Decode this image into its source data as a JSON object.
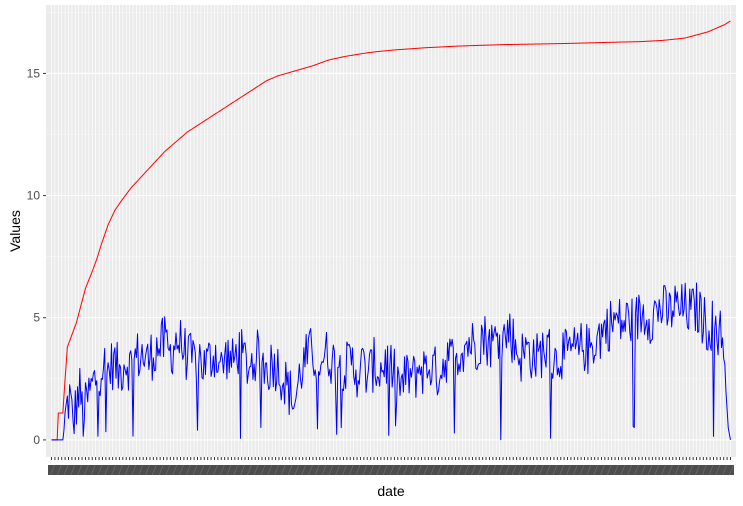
{
  "chart_data": {
    "type": "line",
    "xlabel": "date",
    "ylabel": "Values",
    "ylim": [
      -0.7,
      17.8
    ],
    "y_ticks": [
      0,
      5,
      10,
      15
    ],
    "n_points": 600,
    "grid": "on",
    "legend": "none",
    "colors": {
      "panel": "#ebebeb",
      "grid_major": "#ffffff",
      "grid_minor": "#f5f5f5",
      "tick_text": "#4d4d4d",
      "tick_mark": "#333333"
    },
    "series": [
      {
        "color": "#ff0000",
        "shape": "cumulative",
        "points": [
          [
            0,
            0
          ],
          [
            5,
            0
          ],
          [
            6,
            1.1
          ],
          [
            10,
            1.1
          ],
          [
            12,
            2.5
          ],
          [
            14,
            3.8
          ],
          [
            18,
            4.3
          ],
          [
            22,
            4.8
          ],
          [
            26,
            5.5
          ],
          [
            30,
            6.2
          ],
          [
            36,
            6.9
          ],
          [
            40,
            7.4
          ],
          [
            44,
            8.0
          ],
          [
            50,
            8.8
          ],
          [
            56,
            9.4
          ],
          [
            62,
            9.8
          ],
          [
            70,
            10.3
          ],
          [
            80,
            10.8
          ],
          [
            90,
            11.3
          ],
          [
            100,
            11.8
          ],
          [
            110,
            12.2
          ],
          [
            120,
            12.6
          ],
          [
            130,
            12.9
          ],
          [
            140,
            13.2
          ],
          [
            150,
            13.5
          ],
          [
            160,
            13.8
          ],
          [
            170,
            14.1
          ],
          [
            180,
            14.4
          ],
          [
            190,
            14.7
          ],
          [
            200,
            14.9
          ],
          [
            215,
            15.1
          ],
          [
            230,
            15.3
          ],
          [
            245,
            15.55
          ],
          [
            260,
            15.7
          ],
          [
            280,
            15.85
          ],
          [
            300,
            15.95
          ],
          [
            330,
            16.05
          ],
          [
            360,
            16.12
          ],
          [
            400,
            16.18
          ],
          [
            450,
            16.22
          ],
          [
            500,
            16.28
          ],
          [
            520,
            16.3
          ],
          [
            540,
            16.35
          ],
          [
            560,
            16.45
          ],
          [
            580,
            16.7
          ],
          [
            595,
            17.0
          ],
          [
            600,
            17.15
          ]
        ]
      },
      {
        "color": "#0000ff",
        "shape": "daily",
        "points": [
          [
            0,
            0
          ],
          [
            10,
            0
          ],
          [
            13,
            1.2
          ],
          [
            16,
            1.8
          ],
          [
            19,
            0.6
          ],
          [
            22,
            1.5
          ],
          [
            25,
            2.0
          ],
          [
            28,
            0.9
          ],
          [
            32,
            1.7
          ],
          [
            36,
            2.2
          ],
          [
            40,
            2.6
          ],
          [
            45,
            3.1
          ],
          [
            50,
            2.8
          ],
          [
            55,
            3.2
          ],
          [
            60,
            2.7
          ],
          [
            65,
            3.3
          ],
          [
            70,
            3.0
          ],
          [
            75,
            3.4
          ],
          [
            80,
            3.5
          ],
          [
            85,
            3.2
          ],
          [
            90,
            3.6
          ],
          [
            95,
            3.8
          ],
          [
            100,
            4.0
          ],
          [
            105,
            3.5
          ],
          [
            110,
            4.1
          ],
          [
            115,
            3.9
          ],
          [
            120,
            3.4
          ],
          [
            125,
            3.2
          ],
          [
            130,
            3.5
          ],
          [
            135,
            3.0
          ],
          [
            140,
            3.3
          ],
          [
            145,
            3.6
          ],
          [
            150,
            2.9
          ],
          [
            155,
            3.5
          ],
          [
            160,
            3.1
          ],
          [
            165,
            3.7
          ],
          [
            170,
            3.3
          ],
          [
            175,
            3.0
          ],
          [
            180,
            3.4
          ],
          [
            185,
            3.5
          ],
          [
            190,
            2.8
          ],
          [
            195,
            3.2
          ],
          [
            200,
            3.0
          ],
          [
            205,
            2.5
          ],
          [
            210,
            2.0
          ],
          [
            215,
            1.5
          ],
          [
            220,
            2.8
          ],
          [
            225,
            3.3
          ],
          [
            230,
            3.6
          ],
          [
            235,
            3.2
          ],
          [
            240,
            3.4
          ],
          [
            245,
            3.5
          ],
          [
            250,
            3.1
          ],
          [
            255,
            3.3
          ],
          [
            260,
            2.9
          ],
          [
            265,
            3.2
          ],
          [
            270,
            2.8
          ],
          [
            275,
            3.0
          ],
          [
            280,
            2.6
          ],
          [
            285,
            3.1
          ],
          [
            290,
            2.8
          ],
          [
            295,
            3.2
          ],
          [
            300,
            3.0
          ],
          [
            305,
            2.4
          ],
          [
            310,
            2.2
          ],
          [
            315,
            2.7
          ],
          [
            320,
            2.5
          ],
          [
            325,
            3.0
          ],
          [
            330,
            2.8
          ],
          [
            335,
            3.1
          ],
          [
            340,
            2.7
          ],
          [
            345,
            3.0
          ],
          [
            350,
            3.5
          ],
          [
            355,
            3.2
          ],
          [
            360,
            3.6
          ],
          [
            365,
            3.9
          ],
          [
            370,
            4.0
          ],
          [
            375,
            3.8
          ],
          [
            380,
            4.3
          ],
          [
            385,
            4.1
          ],
          [
            390,
            3.9
          ],
          [
            395,
            4.4
          ],
          [
            400,
            4.2
          ],
          [
            405,
            4.5
          ],
          [
            410,
            3.8
          ],
          [
            415,
            3.4
          ],
          [
            420,
            3.7
          ],
          [
            425,
            3.5
          ],
          [
            430,
            3.3
          ],
          [
            435,
            3.8
          ],
          [
            440,
            3.6
          ],
          [
            445,
            3.2
          ],
          [
            450,
            3.6
          ],
          [
            455,
            3.4
          ],
          [
            460,
            3.7
          ],
          [
            465,
            3.5
          ],
          [
            470,
            3.9
          ],
          [
            475,
            3.6
          ],
          [
            480,
            4.1
          ],
          [
            485,
            4.3
          ],
          [
            490,
            4.6
          ],
          [
            495,
            4.8
          ],
          [
            500,
            4.9
          ],
          [
            505,
            4.7
          ],
          [
            510,
            5.0
          ],
          [
            515,
            4.8
          ],
          [
            520,
            5.1
          ],
          [
            525,
            5.2
          ],
          [
            530,
            5.0
          ],
          [
            535,
            5.3
          ],
          [
            540,
            5.4
          ],
          [
            545,
            5.1
          ],
          [
            550,
            5.5
          ],
          [
            555,
            5.3
          ],
          [
            560,
            5.4
          ],
          [
            565,
            5.2
          ],
          [
            570,
            5.4
          ],
          [
            575,
            5.0
          ],
          [
            580,
            4.6
          ],
          [
            585,
            4.8
          ],
          [
            590,
            4.4
          ],
          [
            594,
            4.2
          ],
          [
            596,
            2.0
          ],
          [
            598,
            0.5
          ],
          [
            600,
            0
          ]
        ]
      }
    ]
  }
}
